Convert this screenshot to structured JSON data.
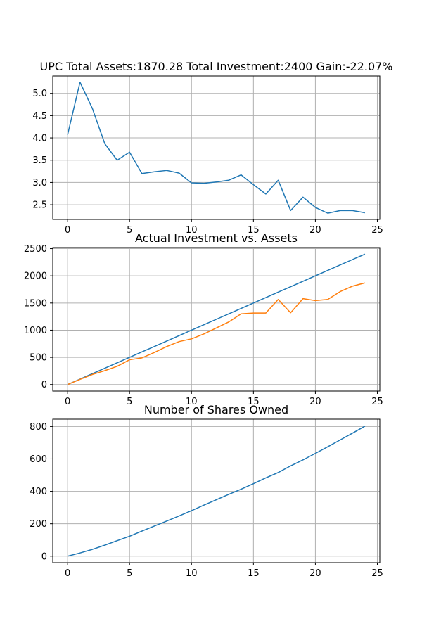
{
  "chart_data": [
    {
      "type": "line",
      "title": "UPC Total Assets:1870.28  Total Investment:2400  Gain:-22.07%",
      "xlabel": "",
      "ylabel": "",
      "xlim": [
        -1.2,
        25.2
      ],
      "ylim": [
        2.17,
        5.39
      ],
      "x_ticks": [
        0,
        5,
        10,
        15,
        20,
        25
      ],
      "y_ticks": [
        2.5,
        3.0,
        3.5,
        4.0,
        4.5,
        5.0
      ],
      "x_tick_labels": [
        "0",
        "5",
        "10",
        "15",
        "20",
        "25"
      ],
      "y_tick_labels": [
        "2.5",
        "3.0",
        "3.5",
        "4.0",
        "4.5",
        "5.0"
      ],
      "grid": true,
      "x": [
        0,
        1,
        2,
        3,
        4,
        5,
        6,
        7,
        8,
        9,
        10,
        11,
        12,
        13,
        14,
        15,
        16,
        17,
        18,
        19,
        20,
        21,
        22,
        23,
        24
      ],
      "series": [
        {
          "color": "#1f77b4",
          "values": [
            4.07,
            5.25,
            4.66,
            3.87,
            3.5,
            3.68,
            3.2,
            3.24,
            3.27,
            3.21,
            2.99,
            2.98,
            3.01,
            3.05,
            3.17,
            2.95,
            2.74,
            3.05,
            2.37,
            2.67,
            2.44,
            2.31,
            2.37,
            2.37,
            2.32
          ]
        }
      ]
    },
    {
      "type": "line",
      "title": "Actual Investment vs. Assets",
      "xlabel": "",
      "ylabel": "",
      "xlim": [
        -1.2,
        25.2
      ],
      "ylim": [
        -120,
        2520
      ],
      "x_ticks": [
        0,
        5,
        10,
        15,
        20,
        25
      ],
      "y_ticks": [
        0,
        500,
        1000,
        1500,
        2000,
        2500
      ],
      "x_tick_labels": [
        "0",
        "5",
        "10",
        "15",
        "20",
        "25"
      ],
      "y_tick_labels": [
        "0",
        "500",
        "1000",
        "1500",
        "2000",
        "2500"
      ],
      "grid": true,
      "x": [
        0,
        1,
        2,
        3,
        4,
        5,
        6,
        7,
        8,
        9,
        10,
        11,
        12,
        13,
        14,
        15,
        16,
        17,
        18,
        19,
        20,
        21,
        22,
        23,
        24
      ],
      "series": [
        {
          "color": "#1f77b4",
          "values": [
            0,
            100,
            200,
            300,
            400,
            500,
            600,
            700,
            800,
            900,
            1000,
            1100,
            1200,
            1300,
            1400,
            1500,
            1600,
            1700,
            1800,
            1900,
            2000,
            2100,
            2200,
            2300,
            2400
          ]
        },
        {
          "color": "#ff7f0e",
          "values": [
            0,
            95,
            185,
            255,
            335,
            455,
            490,
            590,
            700,
            790,
            840,
            930,
            1040,
            1150,
            1300,
            1315,
            1315,
            1565,
            1320,
            1580,
            1545,
            1565,
            1710,
            1810,
            1870
          ]
        }
      ]
    },
    {
      "type": "line",
      "title": "Number of Shares Owned",
      "xlabel": "",
      "ylabel": "",
      "xlim": [
        -1.2,
        25.2
      ],
      "ylim": [
        -40,
        845
      ],
      "x_ticks": [
        0,
        5,
        10,
        15,
        20,
        25
      ],
      "y_ticks": [
        0,
        200,
        400,
        600,
        800
      ],
      "x_tick_labels": [
        "0",
        "5",
        "10",
        "15",
        "20",
        "25"
      ],
      "y_tick_labels": [
        "0",
        "200",
        "400",
        "600",
        "800"
      ],
      "grid": true,
      "x": [
        0,
        1,
        2,
        3,
        4,
        5,
        6,
        7,
        8,
        9,
        10,
        11,
        12,
        13,
        14,
        15,
        16,
        17,
        18,
        19,
        20,
        21,
        22,
        23,
        24
      ],
      "series": [
        {
          "color": "#1f77b4",
          "values": [
            0,
            20,
            42,
            68,
            96,
            123,
            155,
            186,
            217,
            248,
            281,
            315,
            348,
            381,
            413,
            447,
            483,
            516,
            557,
            594,
            634,
            675,
            717,
            759,
            802
          ]
        }
      ]
    }
  ]
}
